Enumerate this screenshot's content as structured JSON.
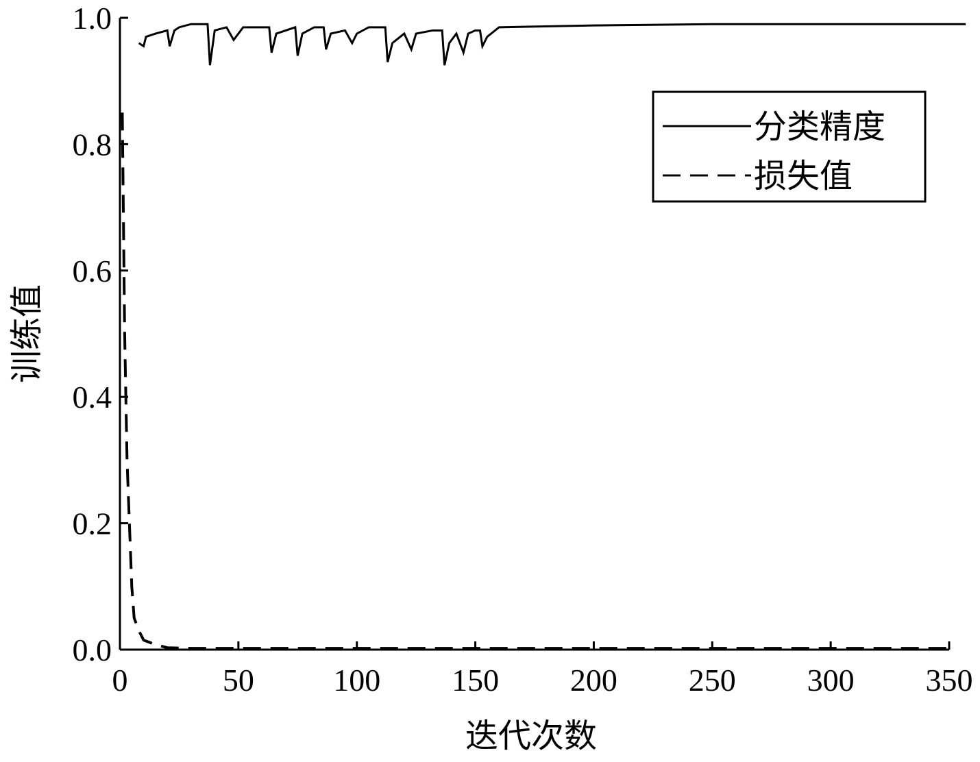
{
  "chart_data": {
    "type": "line",
    "x_label": "迭代次数",
    "y_label": "训练值",
    "xlim": [
      0,
      350
    ],
    "ylim": [
      0,
      1
    ],
    "xticks": [
      0,
      50,
      100,
      150,
      200,
      250,
      300,
      350
    ],
    "yticks": [
      {
        "value": 0,
        "label": "0.0"
      },
      0.2,
      0.4,
      0.6,
      0.8,
      {
        "value": 1,
        "label": "1.0"
      }
    ],
    "legend": "upper right",
    "series": [
      {
        "name": "分类精度",
        "color": "#000000",
        "dash": "solid",
        "x": [
          8,
          10,
          11,
          15,
          20,
          21,
          23,
          25,
          30,
          37,
          38,
          40,
          45,
          48,
          50,
          52,
          60,
          63,
          64,
          66,
          70,
          74,
          75,
          77,
          82,
          86,
          87,
          89,
          95,
          98,
          100,
          105,
          112,
          113,
          115,
          120,
          123,
          125,
          132,
          136,
          137,
          139,
          142,
          145,
          147,
          150,
          152,
          153,
          155,
          160,
          200,
          250,
          300,
          357
        ],
        "values": [
          0.96,
          0.955,
          0.97,
          0.975,
          0.98,
          0.955,
          0.98,
          0.985,
          0.99,
          0.99,
          0.925,
          0.98,
          0.985,
          0.965,
          0.975,
          0.985,
          0.985,
          0.985,
          0.945,
          0.975,
          0.98,
          0.985,
          0.94,
          0.975,
          0.985,
          0.985,
          0.95,
          0.975,
          0.98,
          0.96,
          0.975,
          0.985,
          0.985,
          0.93,
          0.96,
          0.975,
          0.95,
          0.975,
          0.98,
          0.98,
          0.925,
          0.96,
          0.975,
          0.945,
          0.975,
          0.98,
          0.98,
          0.955,
          0.97,
          0.985,
          0.988,
          0.99,
          0.99,
          0.99
        ]
      },
      {
        "name": "损失值",
        "color": "#000000",
        "dash": "dashed",
        "x": [
          1,
          2,
          3,
          4,
          5,
          6,
          8,
          10,
          15,
          20,
          30,
          350
        ],
        "values": [
          0.85,
          0.5,
          0.3,
          0.2,
          0.1,
          0.05,
          0.03,
          0.015,
          0.008,
          0.003,
          0.002,
          0.002
        ]
      }
    ]
  }
}
